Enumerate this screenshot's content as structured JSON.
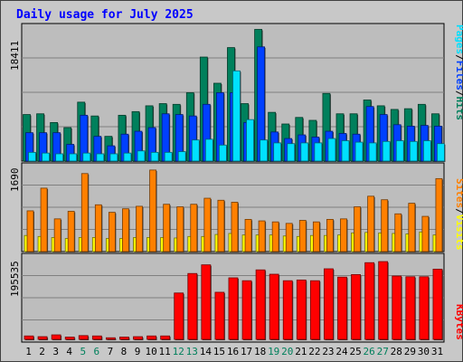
{
  "chart_data": {
    "type": "bar",
    "title": "Daily usage for July 2025",
    "colors": {
      "hits": "#00805c",
      "files": "#0040ff",
      "pages": "#00e0ff",
      "visits": "#ffff00",
      "sites": "#ff8000",
      "kbytes": "#ff0000",
      "title": "#0000ff",
      "weekend_label": "#00805c"
    },
    "days": [
      "1",
      "2",
      "3",
      "4",
      "5",
      "6",
      "7",
      "8",
      "9",
      "10",
      "11",
      "12",
      "13",
      "14",
      "15",
      "16",
      "17",
      "18",
      "19",
      "20",
      "21",
      "22",
      "23",
      "24",
      "25",
      "26",
      "27",
      "28",
      "29",
      "30",
      "31"
    ],
    "weekend_days": [
      "5",
      "6",
      "12",
      "13",
      "19",
      "20",
      "26",
      "27"
    ],
    "panels": [
      {
        "id": "hits-files-pages",
        "axis_max_label": "18411",
        "ymax": 18411,
        "legend": [
          "Pages",
          "/",
          "Files",
          "/",
          "Hits"
        ],
        "series": [
          {
            "name": "Hits",
            "values": [
              6400,
              6500,
              5300,
              4600,
              8100,
              6200,
              3400,
              6300,
              6800,
              7600,
              7900,
              7800,
              9400,
              14300,
              10700,
              15600,
              7900,
              18100,
              6700,
              5100,
              6000,
              5600,
              9300,
              6500,
              6500,
              8400,
              7600,
              7100,
              7200,
              7800,
              6500
            ]
          },
          {
            "name": "Files",
            "values": [
              3900,
              3900,
              3900,
              2300,
              6300,
              3400,
              2100,
              3700,
              4100,
              4600,
              6500,
              6400,
              6200,
              7800,
              9400,
              9400,
              5300,
              15700,
              4000,
              3100,
              3600,
              3300,
              4100,
              3800,
              3700,
              7500,
              6400,
              5000,
              4800,
              4900,
              4800
            ]
          },
          {
            "name": "Pages",
            "values": [
              1200,
              1100,
              1000,
              1000,
              1100,
              1000,
              1000,
              1100,
              1400,
              1200,
              1200,
              1300,
              2900,
              3000,
              2200,
              12400,
              5700,
              2900,
              2500,
              2400,
              2500,
              2500,
              3100,
              2800,
              2600,
              2500,
              2700,
              2800,
              2700,
              2800,
              2400
            ]
          }
        ]
      },
      {
        "id": "sites-visits",
        "axis_max_label": "1690",
        "ymax": 1690,
        "legend": [
          "Sites",
          "/",
          "Visits"
        ],
        "series": [
          {
            "name": "Sites",
            "values": [
              810,
              1260,
              650,
              800,
              1550,
              930,
              780,
              850,
              900,
              1620,
              940,
              890,
              940,
              1060,
              1020,
              980,
              640,
              610,
              590,
              560,
              620,
              590,
              640,
              650,
              890,
              1100,
              1030,
              750,
              960,
              700,
              1450
            ]
          },
          {
            "name": "Visits",
            "values": [
              320,
              300,
              280,
              260,
              280,
              280,
              260,
              260,
              280,
              280,
              280,
              270,
              300,
              300,
              340,
              360,
              330,
              330,
              330,
              310,
              300,
              320,
              320,
              330,
              370,
              380,
              370,
              360,
              350,
              390,
              330
            ]
          }
        ]
      },
      {
        "id": "kbytes",
        "axis_max_label": "195535",
        "ymax": 195535,
        "legend": [
          "KBytes"
        ],
        "series": [
          {
            "name": "KBytes",
            "values": [
              17000,
              15000,
              20000,
              14000,
              18000,
              17000,
              12000,
              14000,
              15000,
              17000,
              17000,
              136000,
              190000,
              214000,
              138000,
              178000,
              170000,
              200000,
              188000,
              170000,
              172000,
              170000,
              203000,
              180000,
              187000,
              220000,
              223000,
              183000,
              181000,
              181000,
              202000
            ]
          }
        ]
      }
    ]
  }
}
